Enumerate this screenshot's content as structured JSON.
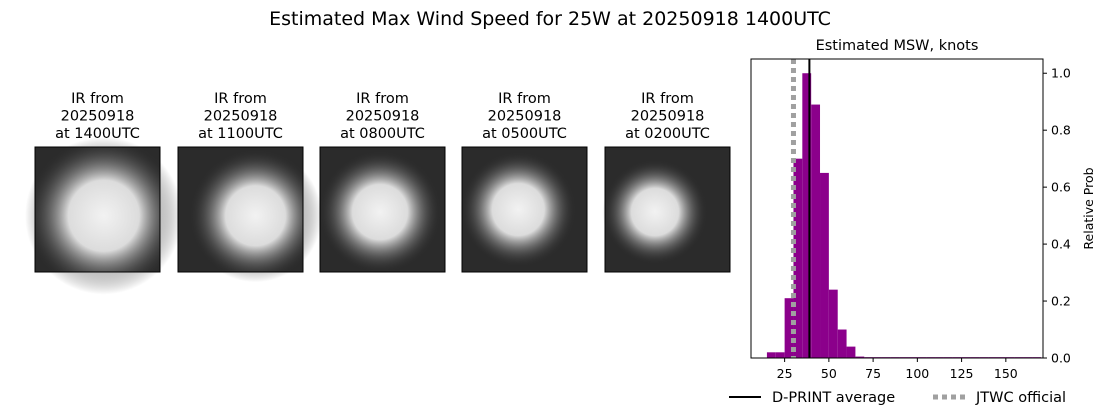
{
  "title": "Estimated Max Wind Speed for 25W at 20250918 1400UTC",
  "images": [
    {
      "lines": [
        "IR from",
        "20250918",
        "at 1400UTC"
      ]
    },
    {
      "lines": [
        "IR from",
        "20250918",
        "at 1100UTC"
      ]
    },
    {
      "lines": [
        "IR from",
        "20250918",
        "at 0800UTC"
      ]
    },
    {
      "lines": [
        "IR from",
        "20250918",
        "at 0500UTC"
      ]
    },
    {
      "lines": [
        "IR from",
        "20250918",
        "at 0200UTC"
      ]
    }
  ],
  "chart_data": {
    "type": "histogram",
    "title": "Estimated MSW, knots",
    "ylabel": "Relative Prob",
    "color": "#8b008b",
    "bins": [
      15,
      20,
      25,
      30,
      35,
      40,
      45,
      50,
      55,
      60,
      65,
      70,
      75,
      80,
      85,
      90,
      95,
      100,
      105,
      110,
      115,
      120,
      125,
      130,
      135,
      140,
      145,
      150,
      155,
      160,
      165,
      170
    ],
    "values": [
      0.02,
      0.02,
      0.21,
      0.7,
      1.0,
      0.89,
      0.65,
      0.24,
      0.1,
      0.04,
      0.005,
      0.003,
      0.003,
      0.003,
      0.003,
      0.003,
      0.003,
      0.003,
      0.003,
      0.003,
      0.003,
      0.003,
      0.003,
      0.003,
      0.003,
      0.003,
      0.003,
      0.003,
      0.003,
      0.003,
      0.003
    ],
    "xlim": [
      6,
      171
    ],
    "xticks": [
      25,
      50,
      75,
      100,
      125,
      150
    ],
    "ylim": [
      0,
      1.05
    ],
    "yticks": [
      {
        "value": 0,
        "label": "0.0"
      },
      0.2,
      0.4,
      0.6,
      0.8,
      {
        "value": 1,
        "label": "1.0"
      }
    ],
    "lines": [
      {
        "name": "D-PRINT average",
        "value": 39,
        "color": "#000000",
        "style": "solid"
      },
      {
        "name": "JTWC official",
        "value": 30,
        "color": "#a0a0a0",
        "style": "dotted"
      }
    ]
  }
}
